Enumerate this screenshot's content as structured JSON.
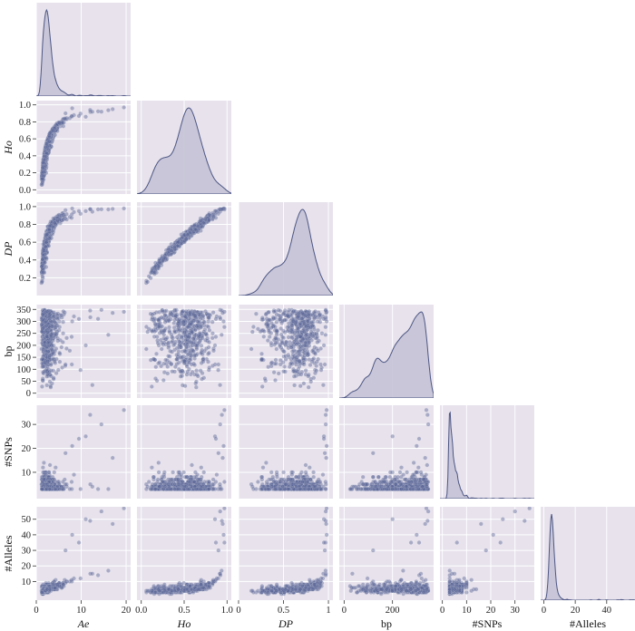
{
  "chart_data": {
    "type": "scatter",
    "kind": "pair-plot (lower triangle: scatter, diagonal: KDE)",
    "grid": true,
    "colors": {
      "panel_bg": "#e7e2ec",
      "point": "#5a6696",
      "kde_fill": "#c4c3d6",
      "kde_line": "#4d5684",
      "grid": "#ffffff"
    },
    "variables": [
      {
        "key": "Ae",
        "label": "Ae",
        "italic": true,
        "range": [
          0,
          21
        ],
        "ticks": [
          "0",
          "10",
          "20"
        ],
        "tick_values": [
          0,
          10,
          20
        ]
      },
      {
        "key": "Ho",
        "label": "Ho",
        "italic": true,
        "range": [
          -0.05,
          1.05
        ],
        "ticks": [
          "0.0",
          "0.2",
          "0.4",
          "0.6",
          "0.8",
          "1.0"
        ],
        "tick_values": [
          0.0,
          0.2,
          0.4,
          0.6,
          0.8,
          1.0
        ],
        "x_ticks": [
          "0.0",
          "0.5",
          "1.0"
        ],
        "x_tick_values": [
          0.0,
          0.5,
          1.0
        ]
      },
      {
        "key": "DP",
        "label": "DP",
        "italic": true,
        "range": [
          0.0,
          1.05
        ],
        "ticks": [
          "0.2",
          "0.4",
          "0.6",
          "0.8",
          "1.0"
        ],
        "tick_values": [
          0.2,
          0.4,
          0.6,
          0.8,
          1.0
        ],
        "x_ticks": [
          "0",
          "0.5",
          "1"
        ],
        "x_tick_values": [
          0.0,
          0.5,
          1.0
        ]
      },
      {
        "key": "bp",
        "label": "bp",
        "italic": false,
        "range": [
          -20,
          370
        ],
        "ticks": [
          "0",
          "50",
          "100",
          "150",
          "200",
          "250",
          "300",
          "350"
        ],
        "tick_values": [
          0,
          50,
          100,
          150,
          200,
          250,
          300,
          350
        ],
        "x_ticks": [
          "0",
          "200"
        ],
        "x_tick_values": [
          0,
          200
        ]
      },
      {
        "key": "SNPs",
        "label": "#SNPs",
        "italic": false,
        "range": [
          -1,
          38
        ],
        "ticks": [
          "10",
          "20",
          "30"
        ],
        "tick_values": [
          10,
          20,
          30
        ],
        "x_ticks": [
          "0",
          "10",
          "20",
          "30"
        ],
        "x_tick_values": [
          0,
          10,
          20,
          30
        ]
      },
      {
        "key": "Alleles",
        "label": "#Alleles",
        "italic": false,
        "range": [
          -2,
          58
        ],
        "ticks": [
          "10",
          "20",
          "30",
          "40",
          "50"
        ],
        "tick_values": [
          10,
          20,
          30,
          40,
          50
        ],
        "x_ticks": [
          "0",
          "20",
          "40"
        ],
        "x_tick_values": [
          0,
          20,
          40
        ]
      }
    ]
  }
}
